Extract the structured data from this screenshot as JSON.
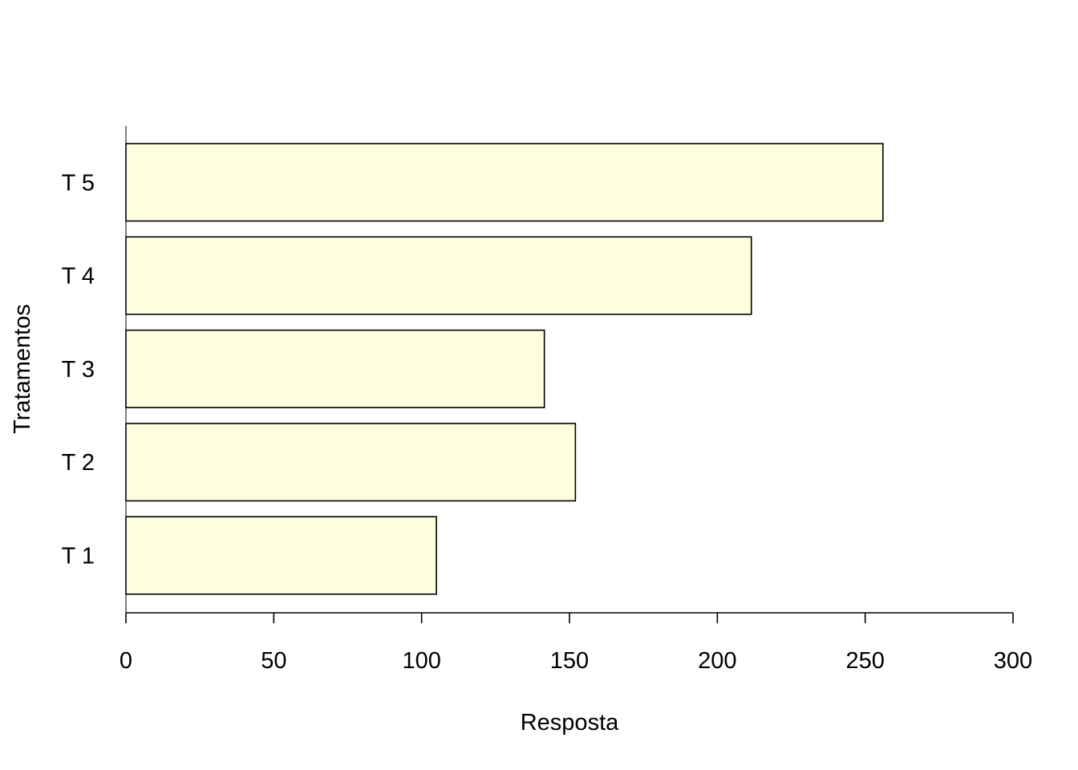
{
  "chart_data": {
    "type": "bar",
    "orientation": "horizontal",
    "categories": [
      "T 1",
      "T 2",
      "T 3",
      "T 4",
      "T 5"
    ],
    "values": [
      105,
      152,
      141.5,
      211.5,
      256
    ],
    "xlabel": "Resposta",
    "ylabel": "Tratamentos",
    "xlim": [
      0,
      300
    ],
    "x_ticks": [
      "0",
      "50",
      "100",
      "150",
      "200",
      "250",
      "300"
    ],
    "grid": false,
    "colors": {
      "bar_fill": "#FFFFE0",
      "bar_stroke": "#000000",
      "axis": "#000000"
    }
  }
}
